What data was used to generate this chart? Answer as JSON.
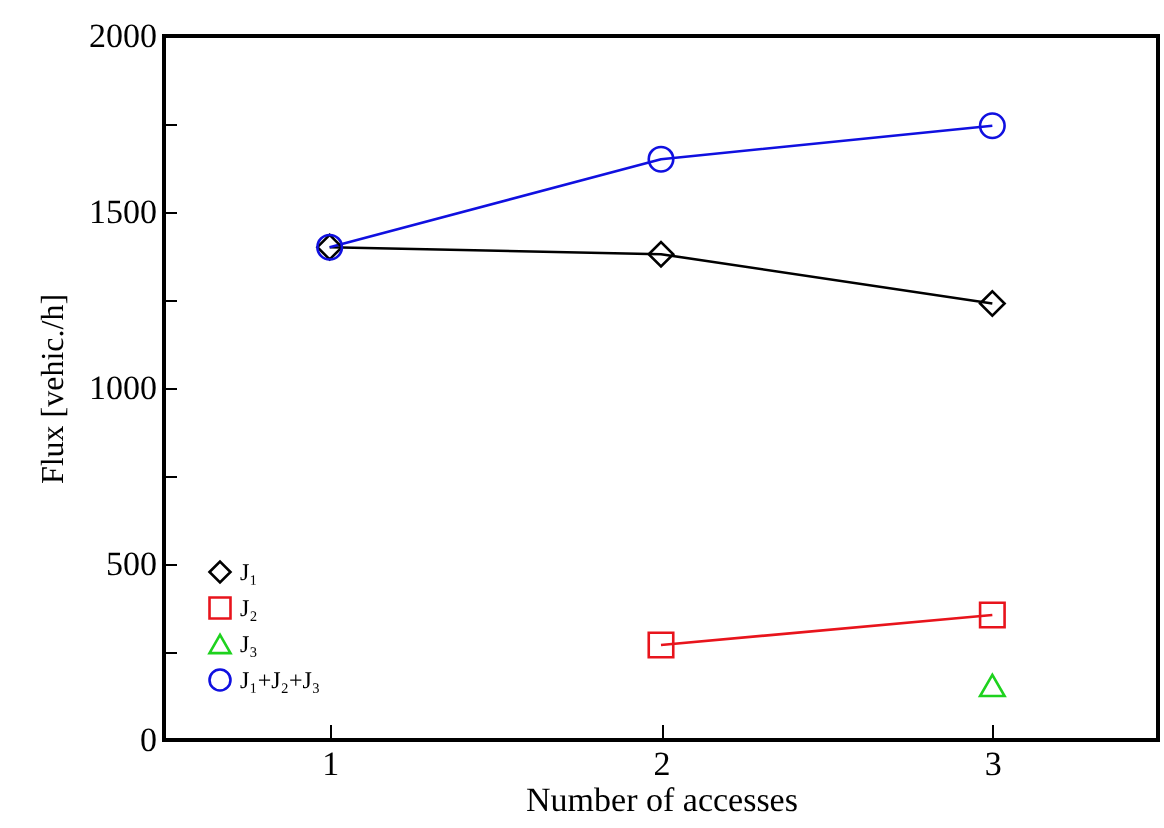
{
  "chart_data": {
    "type": "line",
    "xlabel": "Number of accesses",
    "ylabel": "Flux  [vehic./h]",
    "x": [
      1,
      2,
      3
    ],
    "series": [
      {
        "name": "J₁",
        "color": "#000000",
        "marker": "diamond",
        "values": [
          1400,
          1380,
          1240
        ]
      },
      {
        "name": "J₂",
        "color": "#e8141c",
        "marker": "square",
        "values": [
          null,
          270,
          355
        ]
      },
      {
        "name": "J₃",
        "color": "#1ed21e",
        "marker": "triangle",
        "values": [
          null,
          null,
          155
        ]
      },
      {
        "name": "J₁+J₂+J₃",
        "color": "#1010e0",
        "marker": "circle",
        "values": [
          1400,
          1650,
          1745
        ]
      }
    ],
    "xlim": [
      0.5,
      3.5
    ],
    "xticks": [
      1,
      2,
      3
    ],
    "ylim": [
      0,
      2000
    ],
    "yticks": [
      0,
      {
        "value": 250,
        "label": null
      },
      500,
      {
        "value": 750,
        "label": null
      },
      1000,
      {
        "value": 1250,
        "label": null
      },
      1500,
      {
        "value": 1750,
        "label": null
      },
      2000
    ],
    "legend": "bottom left",
    "grid": false
  }
}
